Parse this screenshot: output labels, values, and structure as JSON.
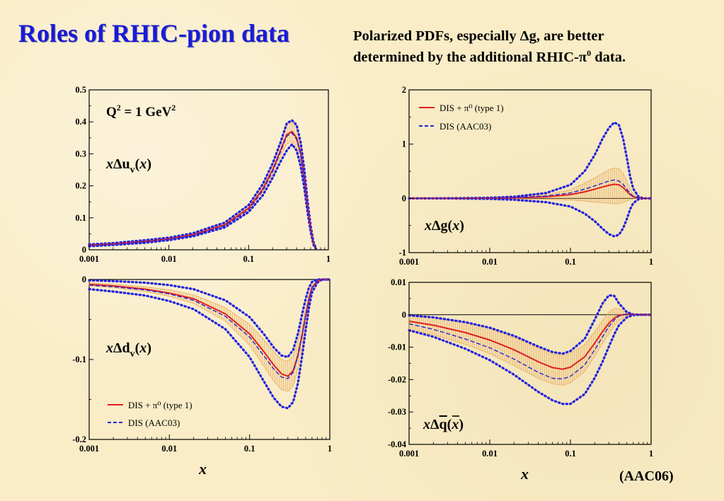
{
  "title": "Roles of RHIC-pion data",
  "subtitle": {
    "line1_prefix": "Polarized PDFs,  especially ",
    "line1_symbol": "Δ",
    "line1_suffix": "g,  are better",
    "line2_prefix": "determined by the additional RHIC-",
    "line2_symbol": "π",
    "line2_sup": "0",
    "line2_suffix": " data."
  },
  "footer": "(AAC06)",
  "colors": {
    "title": "#1a1adb",
    "dis_pi0": "#e02020",
    "dis_aac03": "#2222dd",
    "band": "#e8b060"
  },
  "legend": {
    "series1": "DIS + π⁰ (type 1)",
    "series2": "DIS (AAC03)"
  },
  "annotation": "Q² = 1 GeV²",
  "chart_data": [
    {
      "id": "xduv",
      "type": "line",
      "label": "xΔuv(x)",
      "xscale": "log",
      "xlim": [
        0.001,
        1
      ],
      "ylim": [
        0,
        0.5
      ],
      "yticks": [
        0,
        0.1,
        0.2,
        0.3,
        0.4,
        0.5
      ],
      "yticklabels": [
        "0",
        "0.1",
        "0.2",
        "0.3",
        "0.4",
        "0.5"
      ],
      "xticks": [
        0.001,
        0.01,
        0.1,
        1
      ],
      "xticklabels": [
        "0.001",
        "0.01",
        "0.1",
        "1"
      ],
      "x": [
        0.001,
        0.002,
        0.005,
        0.01,
        0.02,
        0.05,
        0.1,
        0.15,
        0.2,
        0.25,
        0.3,
        0.35,
        0.4,
        0.45,
        0.5,
        0.55,
        0.6,
        0.65,
        0.7
      ],
      "series": [
        {
          "name": "DIS + π⁰ (type 1)",
          "style": "solid",
          "values": [
            0.014,
            0.018,
            0.026,
            0.034,
            0.047,
            0.078,
            0.13,
            0.19,
            0.25,
            0.31,
            0.36,
            0.37,
            0.35,
            0.3,
            0.22,
            0.13,
            0.065,
            0.02,
            0.003
          ]
        },
        {
          "name": "DIS (AAC03)",
          "style": "dashed",
          "values": [
            0.013,
            0.017,
            0.025,
            0.033,
            0.045,
            0.075,
            0.125,
            0.185,
            0.245,
            0.305,
            0.355,
            0.365,
            0.345,
            0.295,
            0.215,
            0.125,
            0.06,
            0.018,
            0.002
          ]
        }
      ],
      "band_upper": [
        0.016,
        0.02,
        0.028,
        0.036,
        0.05,
        0.082,
        0.137,
        0.2,
        0.265,
        0.33,
        0.39,
        0.4,
        0.385,
        0.33,
        0.245,
        0.145,
        0.072,
        0.022,
        0.003
      ],
      "band_lower": [
        0.012,
        0.016,
        0.024,
        0.032,
        0.044,
        0.074,
        0.123,
        0.18,
        0.235,
        0.29,
        0.33,
        0.34,
        0.32,
        0.27,
        0.2,
        0.12,
        0.058,
        0.018,
        0.003
      ],
      "outer_upper": [
        0.017,
        0.021,
        0.03,
        0.038,
        0.052,
        0.085,
        0.14,
        0.205,
        0.27,
        0.335,
        0.395,
        0.405,
        0.39,
        0.335,
        0.25,
        0.15,
        0.075,
        0.025,
        0.004
      ],
      "outer_lower": [
        0.011,
        0.015,
        0.022,
        0.03,
        0.042,
        0.07,
        0.118,
        0.17,
        0.225,
        0.275,
        0.31,
        0.33,
        0.31,
        0.26,
        0.19,
        0.115,
        0.055,
        0.016,
        0.002
      ]
    },
    {
      "id": "xdg",
      "type": "line",
      "label": "xΔg(x)",
      "xscale": "log",
      "xlim": [
        0.001,
        1
      ],
      "ylim": [
        -1,
        2
      ],
      "yticks": [
        -1,
        0,
        1,
        2
      ],
      "yticklabels": [
        "-1",
        "0",
        "1",
        "2"
      ],
      "xticks": [
        0.001,
        0.01,
        0.1,
        1
      ],
      "xticklabels": [
        "0.001",
        "0.01",
        "0.1",
        "1"
      ],
      "x": [
        0.001,
        0.002,
        0.005,
        0.01,
        0.02,
        0.05,
        0.1,
        0.15,
        0.2,
        0.25,
        0.3,
        0.35,
        0.4,
        0.45,
        0.5,
        0.55,
        0.6,
        0.7,
        0.8,
        1.0
      ],
      "series": [
        {
          "name": "DIS + π⁰ (type 1)",
          "style": "solid",
          "values": [
            0.0,
            0.0,
            0.002,
            0.005,
            0.01,
            0.03,
            0.07,
            0.12,
            0.17,
            0.21,
            0.24,
            0.26,
            0.25,
            0.2,
            0.13,
            0.07,
            0.03,
            0.005,
            0.0,
            0.0
          ]
        },
        {
          "name": "DIS (AAC03)",
          "style": "dashed",
          "values": [
            0.0,
            0.0,
            0.002,
            0.006,
            0.015,
            0.045,
            0.1,
            0.17,
            0.23,
            0.28,
            0.32,
            0.34,
            0.32,
            0.26,
            0.17,
            0.09,
            0.04,
            0.006,
            0.0,
            0.0
          ]
        }
      ],
      "band_upper": [
        0.0,
        0.0,
        0.005,
        0.012,
        0.025,
        0.07,
        0.16,
        0.28,
        0.38,
        0.46,
        0.53,
        0.56,
        0.55,
        0.46,
        0.32,
        0.18,
        0.08,
        0.015,
        0.0,
        0.0
      ],
      "band_lower": [
        0.0,
        0.0,
        -0.002,
        -0.004,
        -0.006,
        -0.015,
        -0.03,
        -0.05,
        -0.07,
        -0.08,
        -0.09,
        -0.1,
        -0.1,
        -0.08,
        -0.05,
        -0.025,
        -0.01,
        0.0,
        0.0,
        0.0
      ],
      "outer_upper": [
        0.0,
        0.0,
        0.005,
        0.012,
        0.03,
        0.1,
        0.25,
        0.5,
        0.8,
        1.1,
        1.3,
        1.4,
        1.35,
        1.1,
        0.75,
        0.4,
        0.18,
        0.03,
        0.0,
        0.0
      ],
      "outer_lower": [
        0.0,
        0.0,
        -0.005,
        -0.01,
        -0.025,
        -0.07,
        -0.15,
        -0.28,
        -0.42,
        -0.56,
        -0.66,
        -0.7,
        -0.67,
        -0.55,
        -0.38,
        -0.2,
        -0.09,
        -0.015,
        0.0,
        0.0
      ]
    },
    {
      "id": "xddv",
      "type": "line",
      "label": "xΔdv(x)",
      "xscale": "log",
      "xlim": [
        0.001,
        1
      ],
      "ylim": [
        -0.2,
        0
      ],
      "yticks": [
        -0.2,
        -0.1,
        0
      ],
      "yticklabels": [
        "-0.2",
        "-0.1",
        "0"
      ],
      "xticks": [
        0.001,
        0.01,
        0.1,
        1
      ],
      "xticklabels": [
        "0.001",
        "0.01",
        "0.1",
        "1"
      ],
      "x": [
        0.001,
        0.002,
        0.005,
        0.01,
        0.02,
        0.05,
        0.1,
        0.15,
        0.2,
        0.25,
        0.3,
        0.35,
        0.4,
        0.45,
        0.5,
        0.55,
        0.6,
        0.7,
        0.8,
        1.0
      ],
      "series": [
        {
          "name": "DIS + π⁰ (type 1)",
          "style": "solid",
          "values": [
            -0.006,
            -0.008,
            -0.012,
            -0.017,
            -0.024,
            -0.043,
            -0.068,
            -0.09,
            -0.107,
            -0.118,
            -0.121,
            -0.114,
            -0.095,
            -0.07,
            -0.045,
            -0.024,
            -0.01,
            -0.002,
            0.0,
            0.0
          ]
        },
        {
          "name": "DIS (AAC03)",
          "style": "dashed",
          "values": [
            -0.007,
            -0.009,
            -0.013,
            -0.018,
            -0.026,
            -0.046,
            -0.072,
            -0.095,
            -0.112,
            -0.122,
            -0.124,
            -0.116,
            -0.096,
            -0.07,
            -0.045,
            -0.024,
            -0.01,
            -0.002,
            0.0,
            0.0
          ]
        }
      ],
      "band_upper": [
        -0.004,
        -0.006,
        -0.009,
        -0.013,
        -0.019,
        -0.035,
        -0.056,
        -0.075,
        -0.09,
        -0.1,
        -0.102,
        -0.095,
        -0.078,
        -0.056,
        -0.035,
        -0.018,
        -0.007,
        -0.001,
        0.0,
        0.0
      ],
      "band_lower": [
        -0.008,
        -0.01,
        -0.015,
        -0.021,
        -0.03,
        -0.052,
        -0.082,
        -0.108,
        -0.127,
        -0.138,
        -0.14,
        -0.133,
        -0.112,
        -0.084,
        -0.055,
        -0.03,
        -0.013,
        -0.003,
        0.0,
        0.0
      ],
      "outer_upper": [
        -0.001,
        -0.002,
        -0.004,
        -0.007,
        -0.012,
        -0.026,
        -0.047,
        -0.068,
        -0.085,
        -0.095,
        -0.097,
        -0.088,
        -0.068,
        -0.044,
        -0.024,
        -0.01,
        -0.003,
        0.0,
        0.0,
        0.0
      ],
      "outer_lower": [
        -0.012,
        -0.015,
        -0.02,
        -0.027,
        -0.037,
        -0.062,
        -0.097,
        -0.127,
        -0.148,
        -0.159,
        -0.161,
        -0.153,
        -0.13,
        -0.097,
        -0.063,
        -0.035,
        -0.016,
        -0.004,
        0.0,
        0.0
      ]
    },
    {
      "id": "xdqbar",
      "type": "line",
      "label": "xΔq̄(x)",
      "xscale": "log",
      "xlim": [
        0.001,
        1
      ],
      "ylim": [
        -0.04,
        0.01
      ],
      "yticks": [
        -0.04,
        -0.03,
        -0.02,
        -0.01,
        0,
        0.01
      ],
      "yticklabels": [
        "-0.04",
        "-0.03",
        "-0.02",
        "-0.01",
        "0",
        "0.01"
      ],
      "xticks": [
        0.001,
        0.01,
        0.1,
        1
      ],
      "xticklabels": [
        "0.001",
        "0.01",
        "0.1",
        "1"
      ],
      "x": [
        0.001,
        0.002,
        0.005,
        0.01,
        0.02,
        0.04,
        0.06,
        0.08,
        0.1,
        0.15,
        0.2,
        0.25,
        0.3,
        0.35,
        0.4,
        0.5,
        0.6,
        0.8,
        1.0
      ],
      "series": [
        {
          "name": "DIS + π⁰ (type 1)",
          "style": "solid",
          "values": [
            -0.002,
            -0.0032,
            -0.0055,
            -0.0078,
            -0.0108,
            -0.0145,
            -0.0163,
            -0.0168,
            -0.0162,
            -0.013,
            -0.0088,
            -0.0052,
            -0.0026,
            -0.001,
            -0.0002,
            0.0002,
            0.0001,
            0.0,
            0.0
          ]
        },
        {
          "name": "DIS (AAC03)",
          "style": "dashed",
          "values": [
            -0.0028,
            -0.0045,
            -0.0075,
            -0.0102,
            -0.0137,
            -0.0178,
            -0.0196,
            -0.0198,
            -0.019,
            -0.0155,
            -0.0108,
            -0.0068,
            -0.0036,
            -0.0016,
            -0.0004,
            0.0002,
            0.0001,
            0.0,
            0.0
          ]
        }
      ],
      "band_upper": [
        0.0,
        -0.0008,
        -0.0025,
        -0.0043,
        -0.007,
        -0.0103,
        -0.012,
        -0.0125,
        -0.012,
        -0.0092,
        -0.0052,
        -0.0018,
        0.0008,
        0.002,
        0.0018,
        0.0008,
        0.0002,
        0.0,
        0.0
      ],
      "band_lower": [
        -0.0045,
        -0.0062,
        -0.0092,
        -0.012,
        -0.0157,
        -0.0196,
        -0.0213,
        -0.0218,
        -0.021,
        -0.0175,
        -0.0128,
        -0.0088,
        -0.0058,
        -0.0035,
        -0.0018,
        -0.0004,
        0.0,
        0.0,
        0.0
      ],
      "outer_upper": [
        -0.0002,
        -0.0008,
        -0.0023,
        -0.004,
        -0.0065,
        -0.0098,
        -0.0115,
        -0.012,
        -0.0112,
        -0.0075,
        -0.0015,
        0.0035,
        0.006,
        0.0058,
        0.0035,
        0.0008,
        0.0001,
        0.0,
        0.0
      ],
      "outer_lower": [
        -0.0048,
        -0.0068,
        -0.0105,
        -0.014,
        -0.0185,
        -0.0238,
        -0.0264,
        -0.0275,
        -0.0275,
        -0.0245,
        -0.0195,
        -0.0145,
        -0.0098,
        -0.006,
        -0.0032,
        -0.0008,
        -0.0001,
        0.0,
        0.0
      ]
    }
  ],
  "xlabel": "x"
}
